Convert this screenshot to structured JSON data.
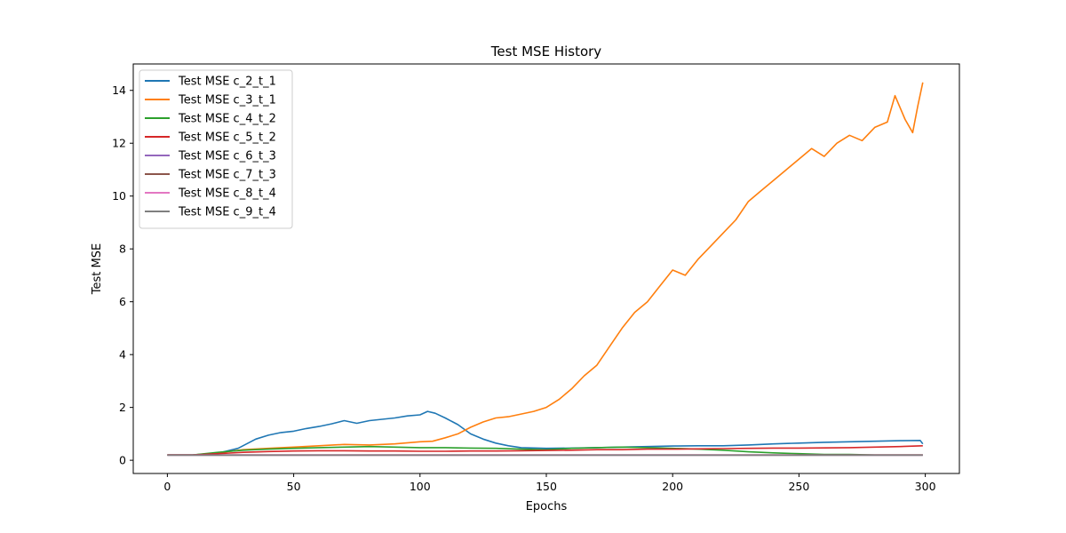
{
  "chart_data": {
    "type": "line",
    "title": "Test MSE History",
    "xlabel": "Epochs",
    "ylabel": "Test MSE",
    "xlim": [
      -13.5,
      313.5
    ],
    "ylim": [
      -0.5,
      15.0
    ],
    "xticks": [
      0,
      50,
      100,
      150,
      200,
      250,
      300
    ],
    "yticks": [
      0,
      2,
      4,
      6,
      8,
      10,
      12,
      14
    ],
    "grid": false,
    "legend_position": "top-left",
    "series": [
      {
        "name": "Test MSE c_2_t_1",
        "color": "#1f77b4",
        "points": [
          [
            0,
            0.2
          ],
          [
            10,
            0.2
          ],
          [
            20,
            0.27
          ],
          [
            28,
            0.45
          ],
          [
            35,
            0.8
          ],
          [
            40,
            0.95
          ],
          [
            45,
            1.05
          ],
          [
            50,
            1.1
          ],
          [
            55,
            1.2
          ],
          [
            60,
            1.28
          ],
          [
            65,
            1.38
          ],
          [
            70,
            1.5
          ],
          [
            75,
            1.4
          ],
          [
            80,
            1.5
          ],
          [
            85,
            1.55
          ],
          [
            90,
            1.6
          ],
          [
            95,
            1.68
          ],
          [
            100,
            1.72
          ],
          [
            103,
            1.85
          ],
          [
            106,
            1.78
          ],
          [
            110,
            1.6
          ],
          [
            115,
            1.35
          ],
          [
            120,
            1.0
          ],
          [
            125,
            0.8
          ],
          [
            130,
            0.65
          ],
          [
            135,
            0.55
          ],
          [
            140,
            0.48
          ],
          [
            150,
            0.45
          ],
          [
            160,
            0.46
          ],
          [
            170,
            0.48
          ],
          [
            180,
            0.5
          ],
          [
            190,
            0.52
          ],
          [
            200,
            0.54
          ],
          [
            210,
            0.55
          ],
          [
            220,
            0.55
          ],
          [
            230,
            0.58
          ],
          [
            240,
            0.62
          ],
          [
            250,
            0.65
          ],
          [
            260,
            0.68
          ],
          [
            270,
            0.7
          ],
          [
            280,
            0.72
          ],
          [
            290,
            0.74
          ],
          [
            298,
            0.75
          ],
          [
            299,
            0.62
          ]
        ]
      },
      {
        "name": "Test MSE c_3_t_1",
        "color": "#ff7f0e",
        "points": [
          [
            0,
            0.2
          ],
          [
            10,
            0.2
          ],
          [
            20,
            0.28
          ],
          [
            30,
            0.4
          ],
          [
            40,
            0.45
          ],
          [
            50,
            0.5
          ],
          [
            60,
            0.55
          ],
          [
            70,
            0.6
          ],
          [
            80,
            0.58
          ],
          [
            90,
            0.62
          ],
          [
            100,
            0.7
          ],
          [
            105,
            0.72
          ],
          [
            110,
            0.85
          ],
          [
            115,
            1.0
          ],
          [
            120,
            1.25
          ],
          [
            125,
            1.45
          ],
          [
            130,
            1.6
          ],
          [
            135,
            1.65
          ],
          [
            140,
            1.75
          ],
          [
            145,
            1.85
          ],
          [
            150,
            2.0
          ],
          [
            155,
            2.3
          ],
          [
            160,
            2.7
          ],
          [
            165,
            3.2
          ],
          [
            170,
            3.6
          ],
          [
            175,
            4.3
          ],
          [
            180,
            5.0
          ],
          [
            185,
            5.6
          ],
          [
            190,
            6.0
          ],
          [
            195,
            6.6
          ],
          [
            200,
            7.2
          ],
          [
            205,
            7.0
          ],
          [
            210,
            7.6
          ],
          [
            215,
            8.1
          ],
          [
            220,
            8.6
          ],
          [
            225,
            9.1
          ],
          [
            230,
            9.8
          ],
          [
            235,
            10.2
          ],
          [
            240,
            10.6
          ],
          [
            245,
            11.0
          ],
          [
            250,
            11.4
          ],
          [
            255,
            11.8
          ],
          [
            260,
            11.5
          ],
          [
            265,
            12.0
          ],
          [
            270,
            12.3
          ],
          [
            275,
            12.1
          ],
          [
            280,
            12.6
          ],
          [
            285,
            12.8
          ],
          [
            288,
            13.8
          ],
          [
            292,
            12.9
          ],
          [
            295,
            12.4
          ],
          [
            297,
            13.4
          ],
          [
            299,
            14.3
          ]
        ]
      },
      {
        "name": "Test MSE c_4_t_2",
        "color": "#2ca02c",
        "points": [
          [
            0,
            0.2
          ],
          [
            10,
            0.2
          ],
          [
            20,
            0.3
          ],
          [
            30,
            0.38
          ],
          [
            40,
            0.42
          ],
          [
            50,
            0.45
          ],
          [
            60,
            0.48
          ],
          [
            70,
            0.5
          ],
          [
            80,
            0.52
          ],
          [
            90,
            0.5
          ],
          [
            100,
            0.48
          ],
          [
            110,
            0.48
          ],
          [
            120,
            0.46
          ],
          [
            130,
            0.45
          ],
          [
            140,
            0.42
          ],
          [
            150,
            0.4
          ],
          [
            160,
            0.45
          ],
          [
            170,
            0.48
          ],
          [
            180,
            0.5
          ],
          [
            190,
            0.48
          ],
          [
            200,
            0.45
          ],
          [
            210,
            0.42
          ],
          [
            220,
            0.38
          ],
          [
            230,
            0.32
          ],
          [
            240,
            0.28
          ],
          [
            250,
            0.25
          ],
          [
            260,
            0.22
          ],
          [
            270,
            0.22
          ],
          [
            280,
            0.2
          ],
          [
            290,
            0.2
          ],
          [
            299,
            0.2
          ]
        ]
      },
      {
        "name": "Test MSE c_5_t_2",
        "color": "#d62728",
        "points": [
          [
            0,
            0.2
          ],
          [
            10,
            0.2
          ],
          [
            20,
            0.25
          ],
          [
            30,
            0.3
          ],
          [
            40,
            0.33
          ],
          [
            50,
            0.35
          ],
          [
            60,
            0.36
          ],
          [
            70,
            0.36
          ],
          [
            80,
            0.35
          ],
          [
            90,
            0.35
          ],
          [
            100,
            0.34
          ],
          [
            110,
            0.34
          ],
          [
            120,
            0.35
          ],
          [
            130,
            0.35
          ],
          [
            140,
            0.36
          ],
          [
            150,
            0.37
          ],
          [
            160,
            0.38
          ],
          [
            170,
            0.4
          ],
          [
            180,
            0.4
          ],
          [
            190,
            0.42
          ],
          [
            200,
            0.42
          ],
          [
            210,
            0.43
          ],
          [
            220,
            0.44
          ],
          [
            230,
            0.45
          ],
          [
            240,
            0.46
          ],
          [
            250,
            0.46
          ],
          [
            260,
            0.47
          ],
          [
            270,
            0.48
          ],
          [
            280,
            0.5
          ],
          [
            290,
            0.52
          ],
          [
            299,
            0.55
          ]
        ]
      },
      {
        "name": "Test MSE c_6_t_3",
        "color": "#9467bd",
        "points": [
          [
            0,
            0.2
          ],
          [
            50,
            0.2
          ],
          [
            100,
            0.2
          ],
          [
            150,
            0.2
          ],
          [
            200,
            0.2
          ],
          [
            250,
            0.2
          ],
          [
            299,
            0.2
          ]
        ]
      },
      {
        "name": "Test MSE c_7_t_3",
        "color": "#8c564b",
        "points": [
          [
            0,
            0.2
          ],
          [
            50,
            0.2
          ],
          [
            100,
            0.2
          ],
          [
            150,
            0.2
          ],
          [
            200,
            0.2
          ],
          [
            250,
            0.2
          ],
          [
            299,
            0.2
          ]
        ]
      },
      {
        "name": "Test MSE c_8_t_4",
        "color": "#e377c2",
        "points": [
          [
            0,
            0.19
          ],
          [
            50,
            0.19
          ],
          [
            100,
            0.19
          ],
          [
            150,
            0.19
          ],
          [
            200,
            0.19
          ],
          [
            250,
            0.19
          ],
          [
            299,
            0.19
          ]
        ]
      },
      {
        "name": "Test MSE c_9_t_4",
        "color": "#7f7f7f",
        "points": [
          [
            0,
            0.19
          ],
          [
            50,
            0.19
          ],
          [
            100,
            0.19
          ],
          [
            150,
            0.19
          ],
          [
            200,
            0.19
          ],
          [
            250,
            0.19
          ],
          [
            299,
            0.19
          ]
        ]
      }
    ]
  }
}
